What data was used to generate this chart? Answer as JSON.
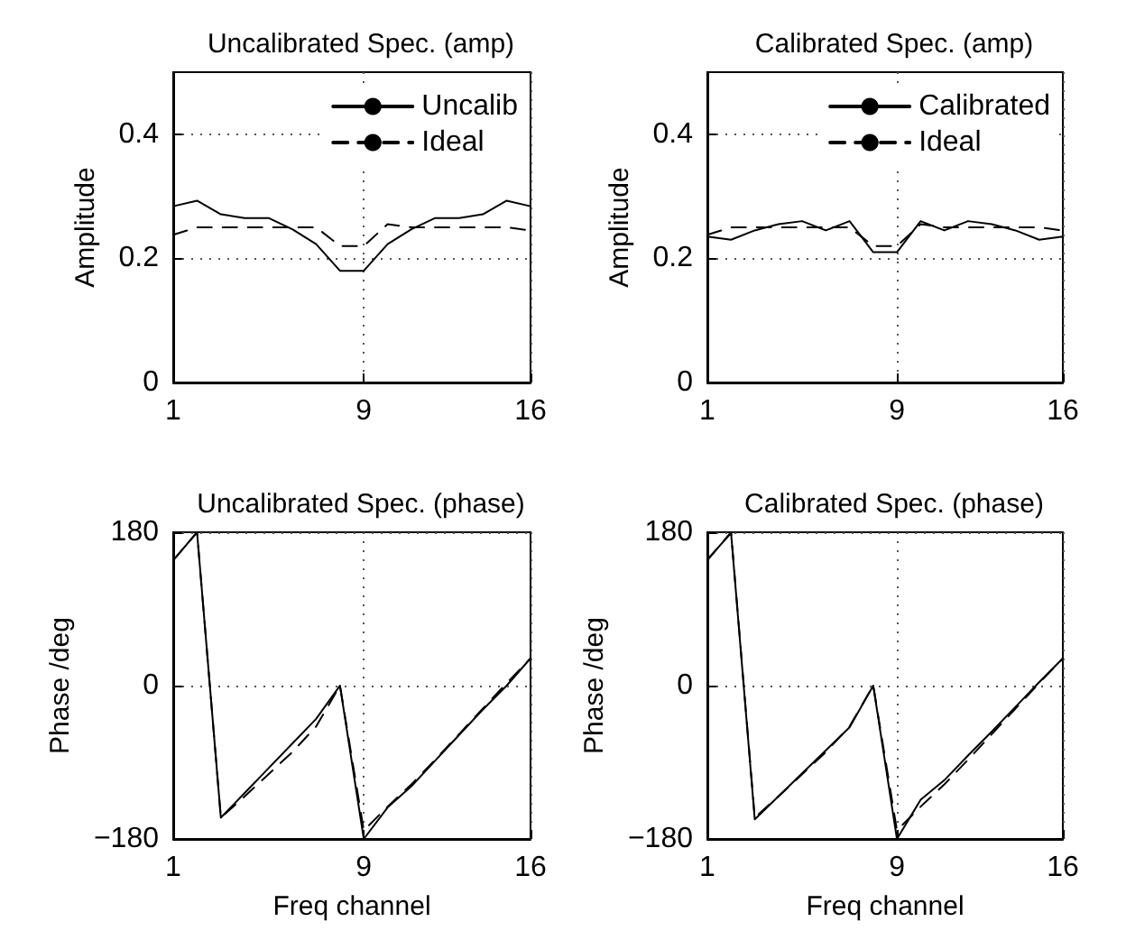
{
  "chart_data": [
    {
      "type": "line",
      "title": "Uncalibrated Spec. (amp)",
      "ylabel": "Amplitude",
      "x": [
        1,
        2,
        3,
        4,
        5,
        6,
        7,
        8,
        9,
        10,
        11,
        12,
        13,
        14,
        15,
        16
      ],
      "xlim": [
        1,
        16
      ],
      "xticks": [
        1,
        9,
        16
      ],
      "ylim": [
        0,
        0.5
      ],
      "yticks": [
        0,
        0.2,
        0.4
      ],
      "grid": true,
      "legend": "top right",
      "marker": "none",
      "tick_labels": "xy",
      "series": [
        {
          "name": "Uncalib",
          "color": "#000000",
          "line_style": "solid",
          "values": [
            0.284,
            0.293,
            0.271,
            0.265,
            0.265,
            0.247,
            0.223,
            0.18,
            0.18,
            0.223,
            0.247,
            0.265,
            0.265,
            0.271,
            0.293,
            0.284
          ]
        },
        {
          "name": "Ideal",
          "color": "#000000",
          "line_style": "dashed",
          "values": [
            0.238,
            0.25,
            0.25,
            0.25,
            0.25,
            0.25,
            0.25,
            0.22,
            0.22,
            0.255,
            0.25,
            0.25,
            0.25,
            0.25,
            0.25,
            0.245
          ]
        }
      ]
    },
    {
      "type": "line",
      "title": "Calibrated Spec. (amp)",
      "ylabel": "Amplitude",
      "x": [
        1,
        2,
        3,
        4,
        5,
        6,
        7,
        8,
        9,
        10,
        11,
        12,
        13,
        14,
        15,
        16
      ],
      "xlim": [
        1,
        16
      ],
      "xticks": [
        1,
        9,
        16
      ],
      "ylim": [
        0,
        0.5
      ],
      "yticks": [
        0,
        0.2,
        0.4
      ],
      "grid": true,
      "legend": "top right",
      "marker": "none",
      "tick_labels": "xy",
      "series": [
        {
          "name": "Calibrated",
          "color": "#000000",
          "line_style": "solid",
          "values": [
            0.235,
            0.23,
            0.245,
            0.255,
            0.26,
            0.245,
            0.26,
            0.21,
            0.21,
            0.26,
            0.245,
            0.26,
            0.255,
            0.245,
            0.23,
            0.235
          ]
        },
        {
          "name": "Ideal",
          "color": "#000000",
          "line_style": "dashed",
          "values": [
            0.238,
            0.25,
            0.25,
            0.25,
            0.25,
            0.25,
            0.25,
            0.22,
            0.22,
            0.255,
            0.25,
            0.25,
            0.25,
            0.25,
            0.25,
            0.245
          ]
        }
      ]
    },
    {
      "type": "line",
      "title": "Uncalibrated Spec. (phase)",
      "xlabel": "Freq channel",
      "ylabel": "Phase /deg",
      "x": [
        1,
        2,
        3,
        4,
        5,
        6,
        7,
        8,
        9,
        10,
        11,
        12,
        13,
        14,
        15,
        16
      ],
      "xlim": [
        1,
        16
      ],
      "xticks": [
        1,
        9,
        16
      ],
      "ylim": [
        -180,
        180
      ],
      "yticks": [
        {
          "value": -180,
          "label": "−180"
        },
        0,
        180
      ],
      "grid": true,
      "marker": "none",
      "series": [
        {
          "color": "#000000",
          "line_style": "solid",
          "values": [
            147,
            180,
            -155,
            -126,
            -97,
            -68,
            -39,
            0,
            -180,
            -143,
            -118,
            -88,
            -58,
            -28,
            0,
            32
          ]
        },
        {
          "color": "#000000",
          "line_style": "dashed",
          "values": [
            147,
            180,
            -155,
            -130,
            -104,
            -78,
            -48,
            0,
            -170,
            -142,
            -116,
            -87,
            -57,
            -27,
            3,
            32
          ]
        }
      ]
    },
    {
      "type": "line",
      "title": "Calibrated Spec. (phase)",
      "xlabel": "Freq channel",
      "ylabel": "Phase /deg",
      "x": [
        1,
        2,
        3,
        4,
        5,
        6,
        7,
        8,
        9,
        10,
        11,
        12,
        13,
        14,
        15,
        16
      ],
      "xlim": [
        1,
        16
      ],
      "xticks": [
        1,
        9,
        16
      ],
      "ylim": [
        -180,
        180
      ],
      "yticks": [
        {
          "value": -180,
          "label": "−180"
        },
        0,
        180
      ],
      "grid": true,
      "marker": "none",
      "series": [
        {
          "color": "#000000",
          "line_style": "solid",
          "values": [
            148,
            179,
            -157,
            -130,
            -103,
            -76,
            -49,
            0,
            -180,
            -134,
            -111,
            -82,
            -54,
            -25,
            4,
            32
          ]
        },
        {
          "color": "#000000",
          "line_style": "dashed",
          "values": [
            147,
            180,
            -155,
            -130,
            -104,
            -78,
            -48,
            0,
            -170,
            -142,
            -116,
            -87,
            -57,
            -27,
            3,
            32
          ]
        }
      ]
    }
  ]
}
